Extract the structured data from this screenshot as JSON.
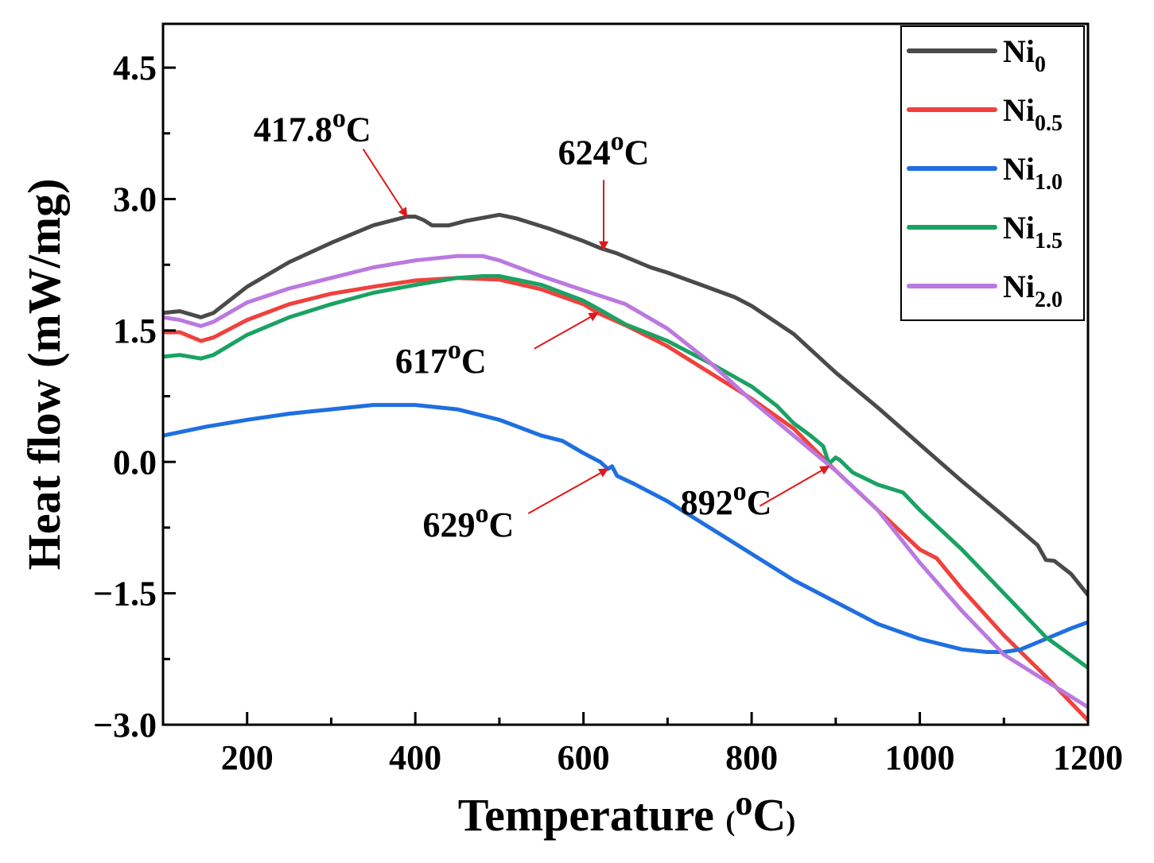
{
  "chart_data": {
    "type": "line",
    "title": "",
    "xlabel": {
      "main": "Temperature ",
      "paren_open": "(",
      "sup": "o",
      "unit": "C",
      "paren_close": ")"
    },
    "ylabel": "Heat flow (mW/mg)",
    "xlim": [
      100,
      1200
    ],
    "ylim": [
      -3.0,
      5.0
    ],
    "xticks": [
      200,
      400,
      600,
      800,
      1000,
      1200
    ],
    "xtick_labels": [
      "200",
      "400",
      "600",
      "800",
      "1000",
      "1200"
    ],
    "xminor": [
      100,
      300,
      500,
      700,
      900,
      1100
    ],
    "yticks": [
      -3.0,
      -1.5,
      0.0,
      1.5,
      3.0,
      4.5
    ],
    "ytick_labels": [
      "−3.0",
      "−1.5",
      "0.0",
      "1.5",
      "3.0",
      "4.5"
    ],
    "yminor": [
      -2.25,
      -0.75,
      0.75,
      2.25,
      3.75
    ],
    "legend_position": "top-right",
    "series": [
      {
        "name": "Ni0",
        "base": "Ni",
        "sub": "0",
        "color": "#4a4a4a",
        "x": [
          100,
          120,
          145,
          160,
          200,
          250,
          300,
          350,
          390,
          400,
          410,
          420,
          440,
          460,
          500,
          520,
          560,
          600,
          620,
          640,
          680,
          700,
          740,
          780,
          800,
          850,
          900,
          950,
          1000,
          1050,
          1100,
          1140,
          1150,
          1160,
          1180,
          1200
        ],
        "values": [
          1.7,
          1.72,
          1.65,
          1.7,
          2.0,
          2.28,
          2.5,
          2.7,
          2.8,
          2.8,
          2.76,
          2.7,
          2.7,
          2.75,
          2.82,
          2.78,
          2.66,
          2.52,
          2.44,
          2.38,
          2.22,
          2.16,
          2.02,
          1.88,
          1.78,
          1.46,
          1.02,
          0.62,
          0.2,
          -0.22,
          -0.62,
          -0.95,
          -1.12,
          -1.13,
          -1.28,
          -1.52
        ]
      },
      {
        "name": "Ni0.5",
        "base": "Ni",
        "sub": "0.5",
        "color": "#f0413d",
        "x": [
          100,
          120,
          145,
          160,
          200,
          250,
          300,
          350,
          400,
          450,
          500,
          550,
          600,
          617,
          650,
          700,
          750,
          800,
          850,
          900,
          950,
          1000,
          1020,
          1050,
          1100,
          1150,
          1200
        ],
        "values": [
          1.48,
          1.48,
          1.38,
          1.42,
          1.62,
          1.8,
          1.92,
          2.0,
          2.07,
          2.1,
          2.08,
          1.97,
          1.8,
          1.7,
          1.56,
          1.32,
          1.02,
          0.72,
          0.38,
          -0.1,
          -0.55,
          -1.0,
          -1.1,
          -1.45,
          -1.98,
          -2.45,
          -2.95
        ]
      },
      {
        "name": "Ni1.0",
        "base": "Ni",
        "sub": "1.0",
        "color": "#1f6fe0",
        "x": [
          100,
          150,
          200,
          250,
          300,
          350,
          400,
          450,
          500,
          550,
          575,
          600,
          620,
          629,
          634,
          640,
          660,
          700,
          750,
          800,
          850,
          900,
          950,
          1000,
          1050,
          1080,
          1100,
          1120,
          1150,
          1180,
          1200
        ],
        "values": [
          0.3,
          0.4,
          0.48,
          0.55,
          0.6,
          0.65,
          0.65,
          0.6,
          0.48,
          0.3,
          0.24,
          0.1,
          0.0,
          -0.08,
          -0.05,
          -0.16,
          -0.25,
          -0.45,
          -0.75,
          -1.05,
          -1.35,
          -1.6,
          -1.85,
          -2.02,
          -2.14,
          -2.17,
          -2.17,
          -2.14,
          -2.02,
          -1.9,
          -1.83
        ]
      },
      {
        "name": "Ni1.5",
        "base": "Ni",
        "sub": "1.5",
        "color": "#1aa263",
        "x": [
          100,
          120,
          145,
          160,
          200,
          250,
          300,
          350,
          400,
          450,
          480,
          500,
          550,
          600,
          617,
          650,
          700,
          750,
          800,
          830,
          850,
          870,
          885,
          892,
          900,
          905,
          920,
          950,
          980,
          1000,
          1050,
          1100,
          1150,
          1200
        ],
        "values": [
          1.2,
          1.22,
          1.18,
          1.22,
          1.45,
          1.65,
          1.8,
          1.93,
          2.02,
          2.1,
          2.12,
          2.12,
          2.02,
          1.84,
          1.75,
          1.57,
          1.38,
          1.13,
          0.86,
          0.64,
          0.44,
          0.3,
          0.18,
          -0.02,
          0.05,
          0.02,
          -0.12,
          -0.26,
          -0.35,
          -0.55,
          -1.0,
          -1.5,
          -2.0,
          -2.35
        ]
      },
      {
        "name": "Ni2.0",
        "base": "Ni",
        "sub": "2.0",
        "color": "#bb79e0",
        "x": [
          100,
          120,
          145,
          160,
          200,
          250,
          300,
          350,
          400,
          450,
          480,
          500,
          550,
          600,
          650,
          700,
          750,
          800,
          850,
          900,
          950,
          1000,
          1050,
          1100,
          1150,
          1200
        ],
        "values": [
          1.65,
          1.62,
          1.55,
          1.6,
          1.82,
          1.98,
          2.1,
          2.22,
          2.3,
          2.35,
          2.35,
          2.3,
          2.12,
          1.96,
          1.8,
          1.52,
          1.14,
          0.7,
          0.3,
          -0.1,
          -0.55,
          -1.15,
          -1.7,
          -2.2,
          -2.5,
          -2.8
        ]
      }
    ],
    "annotations": [
      {
        "value": "417.8",
        "sup": "o",
        "unit": "C",
        "target_x": 390,
        "target_y": 2.8,
        "arrow_dir": "down-right"
      },
      {
        "value": "624",
        "sup": "o",
        "unit": "C",
        "target_x": 624,
        "target_y": 2.42,
        "arrow_dir": "down"
      },
      {
        "value": "617",
        "sup": "o",
        "unit": "C",
        "target_x": 617,
        "target_y": 1.7,
        "arrow_dir": "up-right"
      },
      {
        "value": "629",
        "sup": "o",
        "unit": "C",
        "target_x": 629,
        "target_y": -0.08,
        "arrow_dir": "up-right"
      },
      {
        "value": "892",
        "sup": "o",
        "unit": "C",
        "target_x": 892,
        "target_y": -0.05,
        "arrow_dir": "up-right"
      }
    ],
    "annotation_color": "#e0181c"
  }
}
